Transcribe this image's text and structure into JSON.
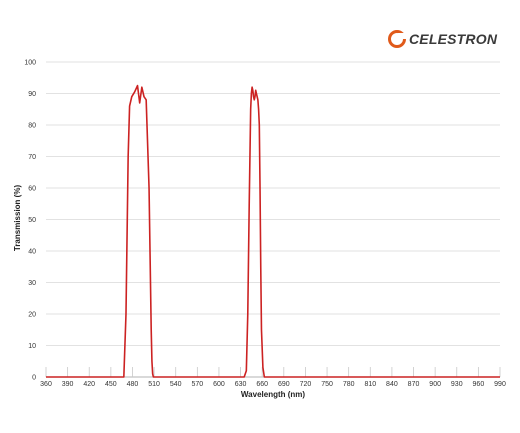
{
  "brand": {
    "name": "CELESTRON",
    "color": "#e05a1a"
  },
  "chart_data": {
    "type": "line",
    "title": "",
    "xlabel": "Wavelength (nm)",
    "ylabel": "Transmission (%)",
    "xlim": [
      360,
      990
    ],
    "ylim": [
      0,
      100
    ],
    "xticks": [
      360,
      390,
      420,
      450,
      480,
      510,
      540,
      570,
      600,
      630,
      660,
      690,
      720,
      750,
      780,
      810,
      840,
      870,
      900,
      930,
      960,
      990
    ],
    "yticks": [
      0,
      10,
      20,
      30,
      40,
      50,
      60,
      70,
      80,
      90,
      100
    ],
    "grid": "horizontal",
    "line_color": "#cc2222",
    "series": [
      {
        "x": [
          360,
          468,
          471,
          474,
          476,
          479,
          483,
          487,
          490,
          493,
          496,
          499,
          503,
          506,
          507,
          508,
          509,
          512,
          515,
          630,
          635,
          638,
          640,
          642,
          644,
          645,
          646,
          647,
          648,
          649,
          650,
          651,
          652,
          653,
          654,
          655,
          656,
          657,
          658,
          659,
          661,
          663,
          666,
          990
        ],
        "y": [
          0,
          0,
          20,
          70,
          86,
          89,
          90.5,
          92.5,
          87,
          92,
          89,
          88,
          60,
          15,
          5,
          1,
          0,
          0,
          0,
          0,
          0,
          2,
          20,
          55,
          85,
          90,
          92,
          91,
          89,
          88,
          89,
          91,
          90,
          89,
          88,
          85,
          80,
          60,
          35,
          15,
          3,
          0,
          0,
          0
        ]
      }
    ]
  }
}
